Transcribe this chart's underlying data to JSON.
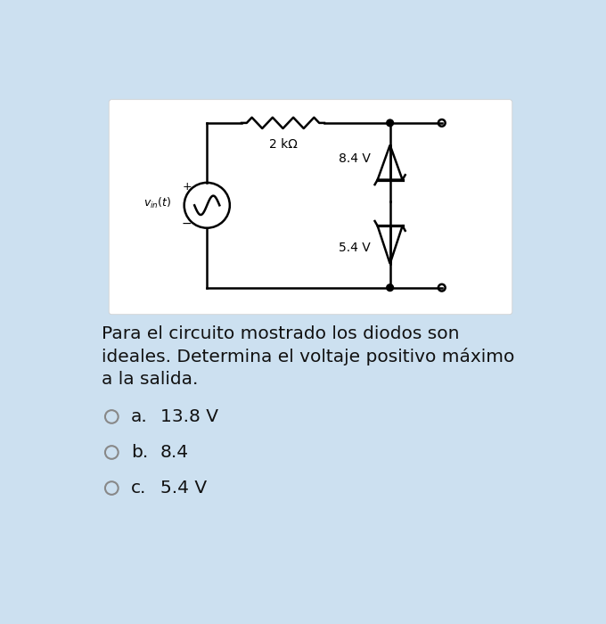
{
  "bg_color": "#cce0f0",
  "card_color": "#ffffff",
  "text_lines": [
    "Para el circuito mostrado los diodos son",
    "ideales. Determina el voltaje positivo máximo",
    "a la salida."
  ],
  "options": [
    {
      "label": "a.",
      "value": "13.8 V"
    },
    {
      "label": "b.",
      "value": "8.4"
    },
    {
      "label": "c.",
      "value": "5.4 V"
    }
  ],
  "resistor_label": "2 kΩ",
  "diode1_label": "8.4 V",
  "diode2_label": "5.4 V",
  "source_label": "v_{in}(t)"
}
